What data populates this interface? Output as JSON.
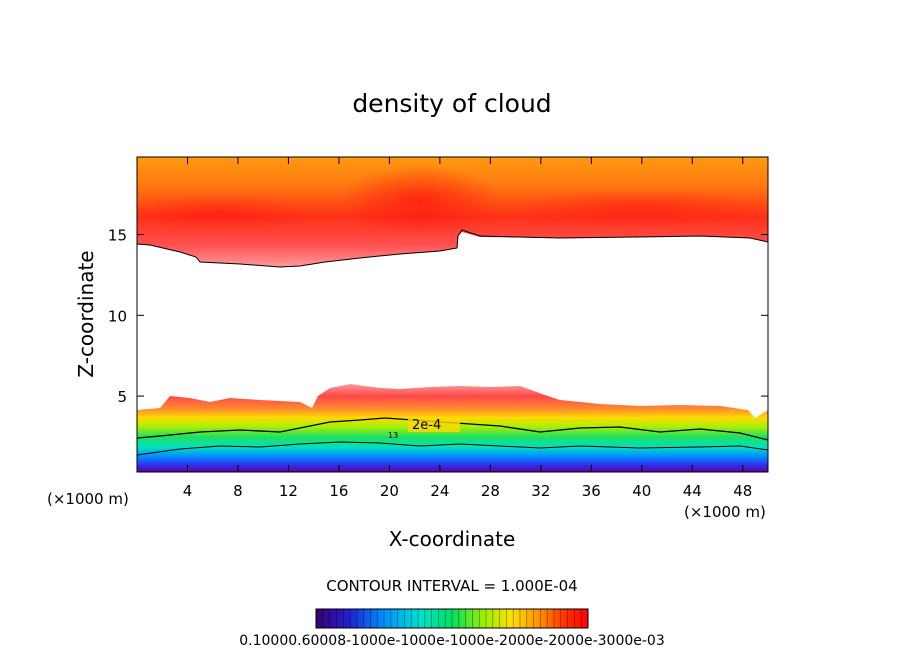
{
  "chart_data": {
    "type": "heatmap",
    "title": "density of cloud",
    "xlabel": "X-coordinate",
    "ylabel": "Z-coordinate",
    "x_unit_left": "(×1000 m)",
    "x_unit_right": "(×1000 m)",
    "xlim": [
      0,
      50
    ],
    "ylim": [
      0.3,
      19.8
    ],
    "x_ticks": [
      4,
      8,
      12,
      16,
      20,
      24,
      28,
      32,
      36,
      40,
      44,
      48
    ],
    "x_tick_labels": [
      "4",
      "8",
      "12",
      "16",
      "20",
      "24",
      "28",
      "32",
      "36",
      "40",
      "44",
      "48"
    ],
    "y_ticks": [
      5,
      10,
      15
    ],
    "y_tick_labels": [
      "5",
      "10",
      "15"
    ],
    "contour_interval_text": "CONTOUR INTERVAL = 1.000E-04",
    "contour_label": "2e-4",
    "contour_label_small": "13",
    "colorbar_text": "0.10000.60008-1000e-1000e-1000e-2000e-2000e-3000e-03",
    "colormap": [
      "#3a0070",
      "#2020d0",
      "#0090ff",
      "#00e0d0",
      "#00e060",
      "#a0f000",
      "#ffe000",
      "#ff9000",
      "#ff3000",
      "#ff0000"
    ],
    "upper_band": {
      "top_value": "#ff9a10",
      "core_value": "#ff2020",
      "edge_value": "#ff9090"
    },
    "lower_band": {
      "colors_bottom_to_top": [
        "#5a00a0",
        "#3040ff",
        "#00b0ff",
        "#00e8a0",
        "#40e040",
        "#b0f000",
        "#ffe000",
        "#ffa040",
        "#ff5050",
        "#ff9090"
      ]
    }
  }
}
